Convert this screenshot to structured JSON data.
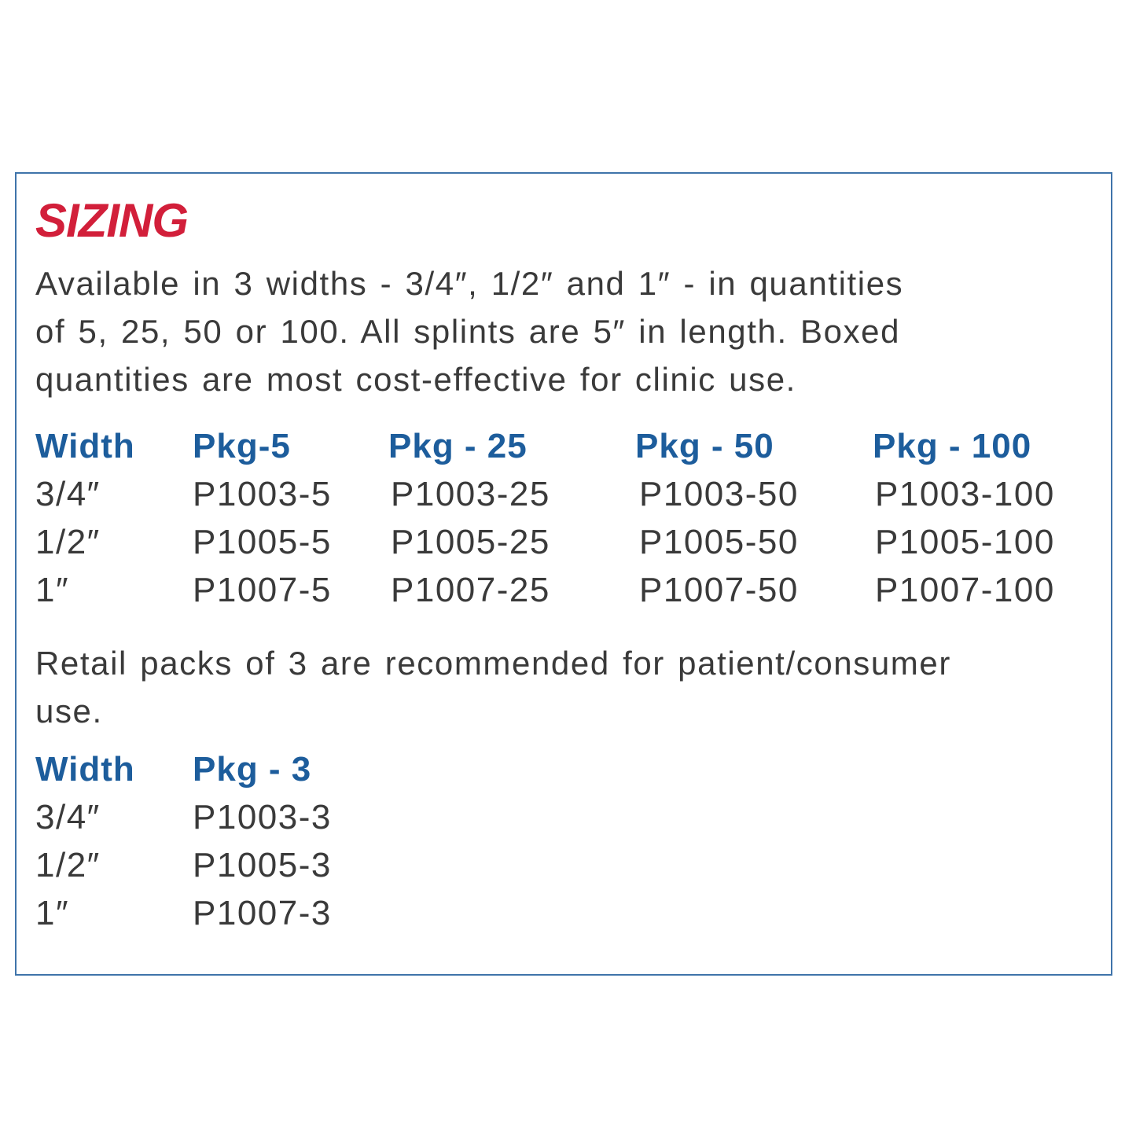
{
  "title": "SIZING",
  "intro_lines": [
    "Available in 3 widths - 3/4″, 1/2″ and 1″ - in quantities",
    "of 5, 25, 50 or 100. All splints are 5″ in length. Boxed",
    "quantities are most cost-effective for clinic use."
  ],
  "table1": {
    "headers": [
      "Width",
      "Pkg-5",
      "Pkg - 25",
      "Pkg - 50",
      "Pkg - 100"
    ],
    "rows": [
      [
        "3/4″",
        "P1003-5",
        "P1003-25",
        "P1003-50",
        "P1003-100"
      ],
      [
        "1/2″",
        "P1005-5",
        "P1005-25",
        "P1005-50",
        "P1005-100"
      ],
      [
        "1″",
        "P1007-5",
        "P1007-25",
        "P1007-50",
        "P1007-100"
      ]
    ]
  },
  "retail_lines": [
    "Retail packs of 3 are recommended for patient/consumer",
    "use."
  ],
  "table2": {
    "headers": [
      "Width",
      "Pkg - 3"
    ],
    "rows": [
      [
        "3/4″",
        "P1003-3"
      ],
      [
        "1/2″",
        "P1005-3"
      ],
      [
        "1″",
        "P1007-3"
      ]
    ]
  },
  "colors": {
    "title": "#d21f3a",
    "header": "#1d5d9c",
    "text": "#3a3a3a",
    "border": "#3f74aa"
  }
}
